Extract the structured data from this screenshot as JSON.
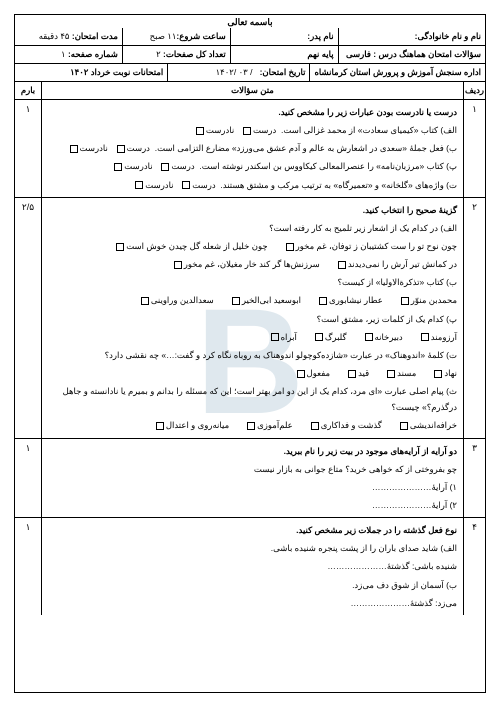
{
  "basmala": "باسمه تعالی",
  "header": {
    "r1": {
      "c1_label": "نام و نام خانوادگی:",
      "c2_label": "نام پدر:",
      "c3_label": "ساعت شروع:",
      "c3_val": "۱۱ صبح",
      "c4_label": "مدت امتحان:",
      "c4_val": "۴۵ دقیقه"
    },
    "r2": {
      "c1_label": "سؤالات امتحان هماهنگ درس :",
      "c1_val": "فارسی",
      "c2_label": "پایه",
      "c2_val": "نهم",
      "c3_label": "تعداد کل صفحات:",
      "c3_val": "۲",
      "c4_label": "شماره صفحه:",
      "c4_val": "۱"
    },
    "r3": {
      "c1": "اداره سنجش آموزش و پرورش استان کرمانشاه",
      "c2_label": "تاریخ امتحان:",
      "c2_val": "/ ۰۳ /۱۴۰۲",
      "c3": "امتحانات نوبت خرداد ۱۴۰۲"
    }
  },
  "cols": {
    "radif": "ردیف",
    "matn": "متن سؤالات",
    "barom": "بارم"
  },
  "q1": {
    "num": "۱",
    "score": "۱",
    "title": "درست یا نادرست بودن عبارات زیر را مشخص کنید.",
    "a": "الف) کتاب «کیمیای سعادت» از محمد غزالی است.",
    "a_t": "درست",
    "a_f": "نادرست",
    "b": "ب) فعل جملهٔ «سعدی در اشعارش به عالم و آدم عشق می‌ورزد» مضارع التزامی است.",
    "b_t": "درست",
    "b_f": "نادرست",
    "c": "پ) کتاب «مرزبان‌نامه» را عنصرالمعالی کیکاووس بن اسکندر نوشته است.",
    "c_t": "درست",
    "c_f": "نادرست",
    "d": "ت) واژه‌های «گلخانه» و «تعمیرگاه» به ترتیب مرکب و مشتق هستند.",
    "d_t": "درست",
    "d_f": "نادرست"
  },
  "q2": {
    "num": "۲",
    "score": "۲/۵",
    "title": "گزینهٔ صحیح را انتخاب کنید.",
    "a": "الف) در کدام یک از اشعار زیر تلمیح به کار رفته است؟",
    "a1": "چون نوح تو را ست کشتیبان ز توفان، غم مخور",
    "a2": "چون خلیل از شعله گل چیدن خوش است",
    "a3": "در کمانش تیر آرش را نمی‌دیدند",
    "a4": "سرزنش‌ها گر کند خار مغیلان، غم مخور",
    "b": "ب) کتاب «تذکرةالاولیا» از کیست؟",
    "b1": "محمدبن منوّر",
    "b2": "عطار نیشابوری",
    "b3": "ابوسعید ابی‌الخیر",
    "b4": "سعدالدین وراوینی",
    "c": "پ) کدام یک از کلمات زیر، مشتق است؟",
    "c1": "آرزومند",
    "c2": "دبیرخانه",
    "c3": "گلبرگ",
    "c4": "آبراه",
    "d": "ت) کلمهٔ «اندوهناک» در عبارت «شازده‌کوچولو اندوهناک به روباه نگاه کرد و گفت:…» چه نقشی دارد؟",
    "d1": "نهاد",
    "d2": "مسند",
    "d3": "قید",
    "d4": "مفعول",
    "e": "ث) پیام اصلی عبارت «ای مرد، کدام یک از این دو امر بهتر است؛ این که مسئله را بدانم و بمیرم یا نادانسته و جاهل درگذرم؟» چیست؟",
    "e1": "خرافه‌اندیشی",
    "e2": "گذشت و فداکاری",
    "e3": "علم‌آموزی",
    "e4": "میانه‌روی و اعتدال"
  },
  "q3": {
    "num": "۳",
    "score": "۱",
    "title": "دو آرایه از آرایه‌های موجود در بیت زیر را نام ببرید.",
    "line": "چو بفروختی از که خواهی خرید؟ متاع جوانی به بازار نیست",
    "b1": "۱) آرایهٔ…………………",
    "b2": "۲) آرایهٔ…………………"
  },
  "q4": {
    "num": "۴",
    "score": "۱",
    "title": "نوع فعل گذشته را در جملات زیر مشخص کنید.",
    "a": "الف) شاید صدای باران را از پشت پنجره شنیده باشی.",
    "a2": "شنیده باشی: گذشتهٔ…………………",
    "b": "ب) آسمان از شوق دف می‌زد.",
    "b2": "می‌زد: گذشتهٔ…………………"
  },
  "watermark": "B"
}
